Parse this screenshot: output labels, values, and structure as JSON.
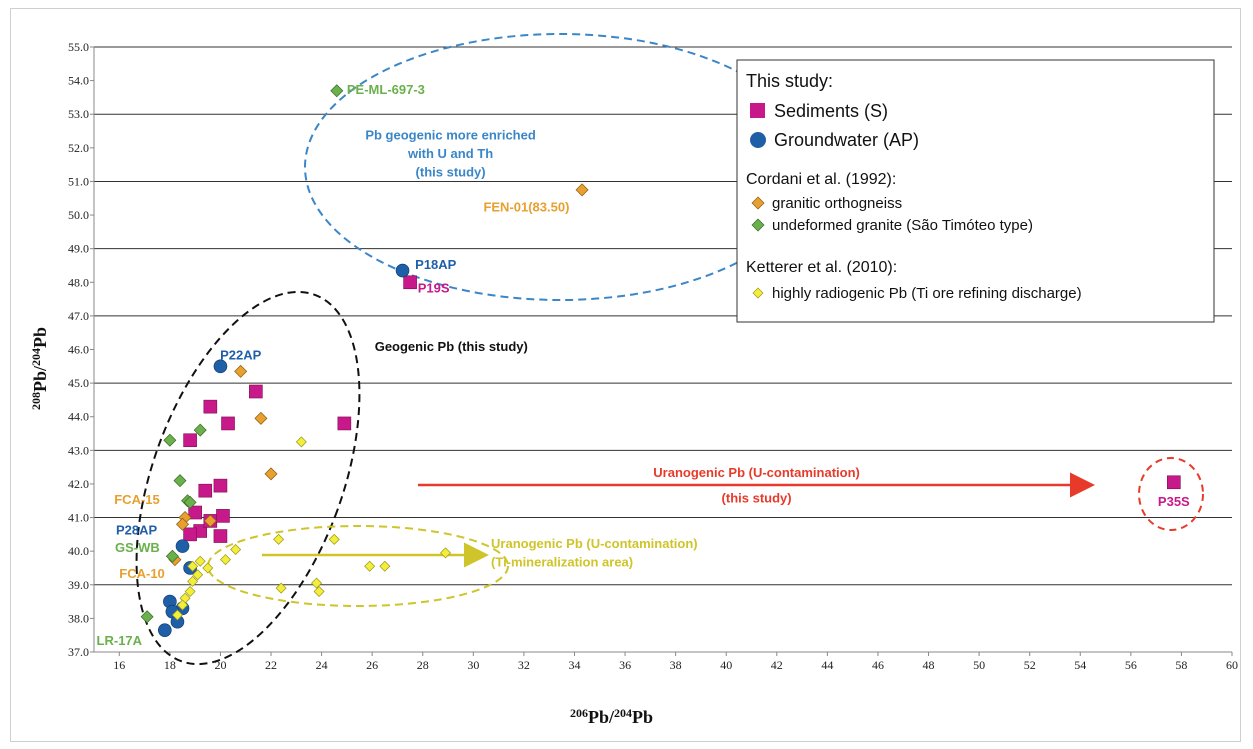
{
  "chart_data": {
    "type": "scatter",
    "xlabel": {
      "pre": "206",
      "base": "Pb/",
      "sup2": "204",
      "base2": "Pb"
    },
    "ylabel": {
      "pre": "208",
      "base": "Pb/",
      "sup2": "204",
      "base2": "Pb"
    },
    "xlim": [
      15,
      60
    ],
    "ylim": [
      37,
      55
    ],
    "xticks": [
      16,
      18,
      20,
      22,
      24,
      26,
      28,
      30,
      32,
      34,
      36,
      38,
      40,
      42,
      44,
      46,
      48,
      50,
      52,
      54,
      56,
      58,
      60
    ],
    "yticks": [
      37,
      38,
      39,
      40,
      41,
      42,
      43,
      44,
      45,
      46,
      47,
      48,
      49,
      50,
      51,
      52,
      53,
      54,
      55
    ],
    "horizontal_gridlines": [
      43,
      45,
      47,
      49,
      51,
      53,
      55,
      37,
      39,
      41
    ],
    "colors": {
      "sediments": "#c8198a",
      "groundwater": "#1f5fa8",
      "granitic": "#e8a030",
      "undeformed": "#6ab04c",
      "radiogenic": "#f2ee3a",
      "red": "#e83a2a",
      "blue_ellipse": "#3a86c8",
      "yellow_ellipse": "#cfc42a"
    },
    "series": [
      {
        "name": "Sediments (S)",
        "marker": "square",
        "color": "#c8198a",
        "points": [
          [
            27.5,
            48.0
          ],
          [
            18.8,
            43.3
          ],
          [
            19.6,
            44.3
          ],
          [
            20.3,
            43.8
          ],
          [
            21.4,
            44.75
          ],
          [
            24.9,
            43.8
          ],
          [
            19.4,
            41.8
          ],
          [
            20.0,
            41.95
          ],
          [
            19.0,
            41.15
          ],
          [
            19.2,
            40.6
          ],
          [
            18.8,
            40.5
          ],
          [
            19.6,
            40.9
          ],
          [
            20.1,
            41.05
          ],
          [
            20.0,
            40.45
          ],
          [
            57.7,
            42.05
          ]
        ]
      },
      {
        "name": "Groundwater (AP)",
        "marker": "circle",
        "color": "#1f5fa8",
        "points": [
          [
            27.2,
            48.35
          ],
          [
            20.0,
            45.5
          ],
          [
            18.5,
            40.15
          ],
          [
            18.8,
            39.5
          ],
          [
            18.0,
            38.5
          ],
          [
            18.5,
            38.3
          ],
          [
            18.1,
            38.2
          ],
          [
            18.3,
            37.9
          ],
          [
            17.8,
            37.65
          ]
        ]
      },
      {
        "name": "granitic orthogneiss",
        "marker": "diamond",
        "color": "#e8a030",
        "points": [
          [
            34.3,
            50.75
          ],
          [
            20.8,
            45.35
          ],
          [
            21.6,
            43.95
          ],
          [
            22.0,
            42.3
          ],
          [
            18.6,
            41.0
          ],
          [
            18.5,
            40.8
          ],
          [
            19.6,
            40.9
          ],
          [
            18.2,
            39.75
          ]
        ]
      },
      {
        "name": "undeformed granite (São Timóteo type)",
        "marker": "diamond",
        "color": "#6ab04c",
        "points": [
          [
            24.6,
            53.7
          ],
          [
            18.0,
            43.3
          ],
          [
            19.2,
            43.6
          ],
          [
            18.4,
            42.1
          ],
          [
            18.7,
            41.5
          ],
          [
            18.8,
            41.45
          ],
          [
            18.1,
            39.85
          ],
          [
            17.1,
            38.05
          ]
        ]
      },
      {
        "name": "highly radiogenic Pb (Ti ore refining discharge)",
        "marker": "diamond",
        "color": "#f2ee3a",
        "points": [
          [
            23.2,
            43.25
          ],
          [
            20.6,
            40.05
          ],
          [
            22.3,
            40.35
          ],
          [
            24.5,
            40.35
          ],
          [
            20.2,
            39.75
          ],
          [
            19.5,
            39.5
          ],
          [
            19.2,
            39.7
          ],
          [
            18.9,
            39.55
          ],
          [
            19.1,
            39.3
          ],
          [
            18.9,
            39.1
          ],
          [
            18.8,
            38.8
          ],
          [
            18.6,
            38.6
          ],
          [
            18.5,
            38.4
          ],
          [
            18.3,
            38.1
          ],
          [
            23.8,
            39.05
          ],
          [
            23.9,
            38.8
          ],
          [
            25.9,
            39.55
          ],
          [
            26.5,
            39.55
          ],
          [
            28.9,
            39.95
          ],
          [
            22.4,
            38.9
          ]
        ]
      }
    ],
    "annotations": [
      {
        "text": "PE-ML-697-3",
        "x": 25.0,
        "y": 53.75,
        "color": "#6ab04c",
        "anchor": "start"
      },
      {
        "text": "Pb geogenic more enriched",
        "x": 29.1,
        "y": 52.4,
        "color": "#3a86c8",
        "anchor": "middle"
      },
      {
        "text": "with U and Th",
        "x": 29.1,
        "y": 51.85,
        "color": "#3a86c8",
        "anchor": "middle"
      },
      {
        "text": "(this study)",
        "x": 29.1,
        "y": 51.3,
        "color": "#3a86c8",
        "anchor": "middle"
      },
      {
        "text": "FEN-01(83.50)",
        "x": 33.8,
        "y": 50.25,
        "color": "#e8a030",
        "anchor": "end"
      },
      {
        "text": "P18AP",
        "x": 27.7,
        "y": 48.55,
        "color": "#1f5fa8",
        "anchor": "start"
      },
      {
        "text": "P19S",
        "x": 27.8,
        "y": 47.85,
        "color": "#c8198a",
        "anchor": "start"
      },
      {
        "text": "Geogenic  Pb  (this study)",
        "x": 26.1,
        "y": 46.1,
        "color": "#111111",
        "anchor": "start"
      },
      {
        "text": "P22AP",
        "x": 20.8,
        "y": 45.85,
        "color": "#1f5fa8",
        "anchor": "middle"
      },
      {
        "text": "FCA-15",
        "x": 17.6,
        "y": 41.55,
        "color": "#e8a030",
        "anchor": "end"
      },
      {
        "text": "P28AP",
        "x": 17.5,
        "y": 40.65,
        "color": "#1f5fa8",
        "anchor": "end"
      },
      {
        "text": "GS-WB",
        "x": 17.6,
        "y": 40.12,
        "color": "#6ab04c",
        "anchor": "end"
      },
      {
        "text": "FCA-10",
        "x": 17.8,
        "y": 39.35,
        "color": "#e8a030",
        "anchor": "end"
      },
      {
        "text": "LR-17A",
        "x": 16.9,
        "y": 37.35,
        "color": "#6ab04c",
        "anchor": "end"
      },
      {
        "text": "Uranogenic Pb  (U-contamination)",
        "x": 41.2,
        "y": 42.35,
        "color": "#e83a2a",
        "anchor": "middle"
      },
      {
        "text": "(this study)",
        "x": 41.2,
        "y": 41.6,
        "color": "#e83a2a",
        "anchor": "middle"
      },
      {
        "text": "P35S",
        "x": 57.7,
        "y": 41.5,
        "color": "#c8198a",
        "anchor": "middle"
      },
      {
        "text": "Uranogenic Pb  (U-contamination)",
        "x": 30.7,
        "y": 40.25,
        "color": "#cfc42a",
        "anchor": "start"
      },
      {
        "text": "(Ti-mineralization area)",
        "x": 30.7,
        "y": 39.7,
        "color": "#cfc42a",
        "anchor": "start"
      }
    ],
    "legend": {
      "placement": "top-right",
      "heading1": "This study:",
      "item1": "Sediments (S)",
      "item2": "Groundwater (AP)",
      "heading2": "Cordani et al. (1992):",
      "item3": "granitic orthogneiss",
      "item4": "undeformed granite (São Timóteo type)",
      "heading3": "Ketterer et al. (2010):",
      "item5": "highly radiogenic Pb (Ti ore refining discharge)"
    }
  }
}
